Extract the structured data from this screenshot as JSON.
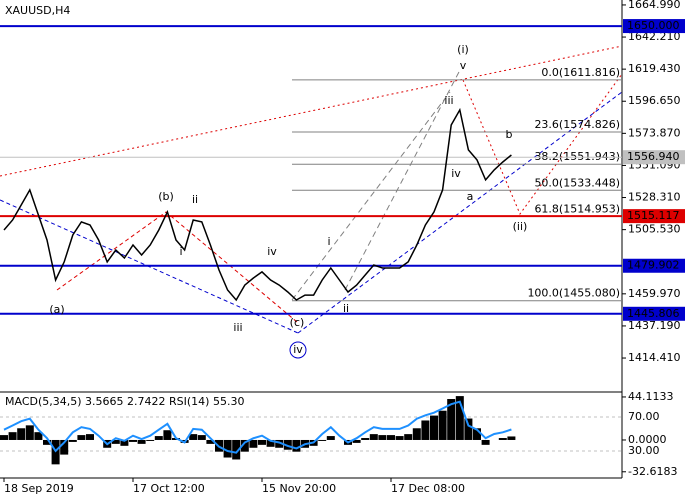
{
  "chart_data": [
    {
      "type": "line",
      "title": "XAUUSD,H4",
      "categories": [
        "18 Sep 2019",
        null,
        null,
        null,
        null,
        null,
        null,
        null,
        null,
        null,
        null,
        null,
        null,
        null,
        null,
        "17 Oct 12:00",
        null,
        null,
        null,
        null,
        null,
        null,
        null,
        null,
        null,
        null,
        null,
        null,
        null,
        null,
        "15 Nov 20:00",
        null,
        null,
        null,
        null,
        null,
        null,
        null,
        null,
        null,
        null,
        null,
        null,
        null,
        null,
        "17 Dec 08:00",
        null,
        null,
        null,
        null,
        null,
        null,
        null,
        null,
        null,
        null,
        null,
        null,
        null,
        null
      ],
      "values": [
        1505.3,
        1512.4,
        1523.0,
        1533.7,
        1515.9,
        1498.2,
        1469.8,
        1482.6,
        1501.7,
        1511.0,
        1508.8,
        1498.2,
        1482.6,
        1491.1,
        1485.4,
        1494.6,
        1487.5,
        1494.6,
        1505.3,
        1518.1,
        1498.2,
        1491.1,
        1512.4,
        1511.0,
        1494.6,
        1476.9,
        1462.7,
        1455.6,
        1466.2,
        1471.2,
        1475.5,
        1469.8,
        1466.2,
        1461.3,
        1455.6,
        1459.1,
        1459.1,
        1469.8,
        1478.3,
        1469.8,
        1461.3,
        1466.2,
        1473.3,
        1480.4,
        1478.3,
        1478.3,
        1478.3,
        1482.6,
        1494.6,
        1508.8,
        1518.1,
        1533.7,
        1579.8,
        1590.5,
        1562.1,
        1555.0,
        1540.8,
        1547.9,
        1553.5,
        1558.5
      ],
      "color": "#000000",
      "ylim": [
        1390.3,
        1668.5
      ],
      "yticks": [
        {
          "value": 1664.99,
          "label": "1664.990"
        },
        {
          "value": 1642.21,
          "label": "1642.210"
        },
        {
          "value": 1619.43,
          "label": "1619.430"
        },
        {
          "value": 1596.65,
          "label": "1596.650"
        },
        {
          "value": 1573.87,
          "label": "1573.870"
        },
        {
          "value": 1551.09,
          "label": "1551.090"
        },
        {
          "value": 1528.31,
          "label": "1528.310"
        },
        {
          "value": 1505.53,
          "label": "1505.530"
        },
        {
          "value": 1459.97,
          "label": "1459.970"
        },
        {
          "value": 1437.19,
          "label": "1437.190"
        },
        {
          "value": 1414.41,
          "label": "1414.410"
        }
      ],
      "levels": [
        {
          "value": 1650.0,
          "label": "1650.000",
          "color": "#0000cc"
        },
        {
          "value": 1515.117,
          "label": "1515.117",
          "color": "#dd0000"
        },
        {
          "value": 1479.902,
          "label": "1479.902",
          "color": "#0000cc"
        },
        {
          "value": 1445.806,
          "label": "1445.806",
          "color": "#0000cc"
        }
      ],
      "current_price": {
        "value": 1556.94,
        "label": "1556.940"
      },
      "fibonacci": [
        {
          "value": 1611.816,
          "label": "0.0(1611.816)"
        },
        {
          "value": 1574.826,
          "label": "23.6(1574.826)"
        },
        {
          "value": 1551.943,
          "label": "38.2(1551.943)"
        },
        {
          "value": 1533.448,
          "label": "50.0(1533.448)"
        },
        {
          "value": 1514.953,
          "label": "61.8(1514.953)"
        },
        {
          "value": 1455.08,
          "label": "100.0(1455.080)"
        }
      ],
      "wave_labels": [
        {
          "text": "(a)",
          "color": "#dd0000"
        },
        {
          "text": "(b)",
          "color": "#dd0000"
        },
        {
          "text": "(c)",
          "color": "#dd0000"
        },
        {
          "text": "(i)",
          "color": "#dd0000"
        },
        {
          "text": "(ii)",
          "color": "#dd0000"
        },
        {
          "text": "iv",
          "color": "#0000cc"
        },
        {
          "text": "ii",
          "color": "#808080"
        },
        {
          "text": "i",
          "color": "#808080"
        },
        {
          "text": "iii",
          "color": "#808080"
        },
        {
          "text": "iv",
          "color": "#808080"
        },
        {
          "text": "i",
          "color": "#808080"
        },
        {
          "text": "ii",
          "color": "#808080"
        },
        {
          "text": "iii",
          "color": "#808080"
        },
        {
          "text": "v",
          "color": "#808080"
        },
        {
          "text": "iv",
          "color": "#808080"
        },
        {
          "text": "a",
          "color": "#808080"
        },
        {
          "text": "b",
          "color": "#808080"
        }
      ]
    },
    {
      "type": "macd",
      "title": "MACD(5,34,5) 3.5665 2.7422 RSI(14) 55.30",
      "values": [
        5,
        8,
        12,
        15,
        8,
        -5,
        -25,
        -15,
        -2,
        5,
        6,
        0,
        -8,
        -4,
        -6,
        -2,
        -4,
        -1,
        4,
        10,
        2,
        -3,
        6,
        5,
        -4,
        -12,
        -18,
        -20,
        -12,
        -8,
        -5,
        -7,
        -8,
        -10,
        -12,
        -8,
        -6,
        -1,
        4,
        0,
        -5,
        -3,
        2,
        6,
        5,
        5,
        4,
        6,
        12,
        20,
        25,
        30,
        42,
        45,
        22,
        12,
        -5,
        0,
        2,
        3.6
      ],
      "color": "#000000",
      "rsi": {
        "values": [
          55,
          60,
          65,
          68,
          55,
          45,
          30,
          40,
          52,
          58,
          56,
          48,
          38,
          45,
          42,
          48,
          44,
          48,
          55,
          62,
          45,
          40,
          56,
          55,
          45,
          35,
          30,
          28,
          40,
          45,
          48,
          42,
          40,
          36,
          33,
          38,
          40,
          50,
          58,
          48,
          40,
          45,
          52,
          58,
          56,
          56,
          56,
          60,
          68,
          72,
          75,
          80,
          85,
          88,
          60,
          55,
          45,
          50,
          52,
          55.3
        ],
        "color": "#1e90ff",
        "axis": "y2"
      },
      "ylim": [
        -39.0,
        49.2
      ],
      "yticks": [
        44.1133,
        {
          "value": 0,
          "label": "0.0000"
        },
        -32.6183
      ],
      "y2lim": [
        -1.8,
        99.4
      ],
      "y2ticks": [
        {
          "value": 70,
          "label": "70.00"
        },
        {
          "value": 30,
          "label": "30.00"
        }
      ]
    }
  ]
}
